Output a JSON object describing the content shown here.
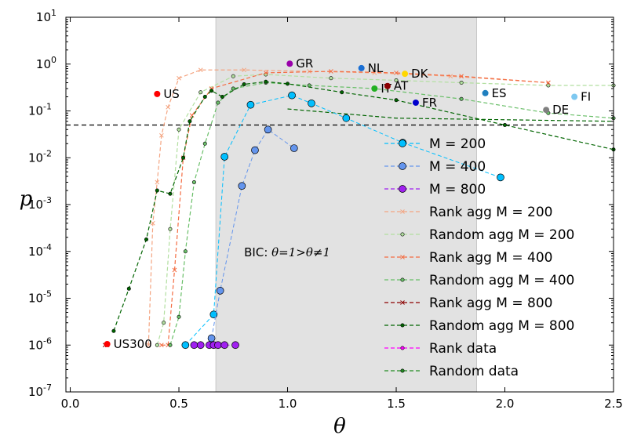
{
  "chart_data": {
    "type": "scatter",
    "title": "",
    "xlabel": "θ",
    "ylabel": "p",
    "xlim": [
      -0.02,
      2.5
    ],
    "ylim": [
      1e-07,
      10
    ],
    "yscale": "log",
    "x_ticks": [
      "0.0",
      "0.5",
      "1.0",
      "1.5",
      "2.0",
      "2.5"
    ],
    "y_ticks": [
      {
        "base": "10",
        "exp": "1"
      },
      {
        "base": "10",
        "exp": "0"
      },
      {
        "base": "10",
        "exp": "-1"
      },
      {
        "base": "10",
        "exp": "-2"
      },
      {
        "base": "10",
        "exp": "-3"
      },
      {
        "base": "10",
        "exp": "-4"
      },
      {
        "base": "10",
        "exp": "-5"
      },
      {
        "base": "10",
        "exp": "-6"
      },
      {
        "base": "10",
        "exp": "-7"
      }
    ],
    "shaded_region": {
      "x0": 0.67,
      "x1": 1.87,
      "color": "#e2e2e2"
    },
    "threshold_line": {
      "y": 0.05,
      "style": "dashed",
      "color": "#000000"
    },
    "annotation": {
      "text_prefix": "BIC: ",
      "math": "θ=1>θ≠1",
      "x": 1.0,
      "y": 0.0001
    },
    "legend_position": "center-right",
    "series": [
      {
        "name": "M = 200",
        "kind": "marker",
        "color": "#00bfff",
        "marker": "circle",
        "x": [
          0.53,
          0.66,
          0.71,
          0.83,
          1.02,
          1.11,
          1.27,
          1.53,
          1.98
        ],
        "y": [
          1e-06,
          4.5e-06,
          0.0105,
          0.135,
          0.215,
          0.145,
          0.07,
          0.021,
          0.0038
        ]
      },
      {
        "name": "M = 400",
        "kind": "marker",
        "color": "#6495ed",
        "marker": "circle",
        "x": [
          0.65,
          0.69,
          0.79,
          0.85,
          0.91,
          1.03
        ],
        "y": [
          1.4e-06,
          1.45e-05,
          0.0025,
          0.0145,
          0.04,
          0.016
        ]
      },
      {
        "name": "M = 800",
        "kind": "marker",
        "color": "#a020f0",
        "marker": "circle",
        "x": [
          0.57,
          0.6,
          0.64,
          0.66,
          0.68,
          0.71,
          0.76
        ],
        "y": [
          1e-06,
          1e-06,
          1e-06,
          1e-06,
          1e-06,
          1e-06,
          1e-06
        ]
      },
      {
        "name": "Rank agg M = 200",
        "kind": "dashed-line",
        "color": "#f4a582",
        "marker": "x",
        "x": [
          0.36,
          0.38,
          0.4,
          0.42,
          0.45,
          0.5,
          0.6,
          0.8,
          1.1,
          1.4,
          1.75,
          2.2
        ],
        "y": [
          1e-06,
          0.0004,
          0.003,
          0.03,
          0.12,
          0.5,
          0.75,
          0.75,
          0.7,
          0.65,
          0.55,
          0.4
        ]
      },
      {
        "name": "Random agg M = 200",
        "kind": "dashed-line",
        "color": "#b2dfa0",
        "marker": "circle-small",
        "x": [
          0.4,
          0.43,
          0.46,
          0.5,
          0.6,
          0.75,
          0.9,
          1.2,
          1.5,
          1.8,
          2.2,
          2.5
        ],
        "y": [
          1e-06,
          3e-06,
          0.0003,
          0.04,
          0.25,
          0.55,
          0.6,
          0.5,
          0.45,
          0.4,
          0.35,
          0.35
        ]
      },
      {
        "name": "Rank agg M = 400",
        "kind": "dashed-line",
        "color": "#f46d43",
        "marker": "x",
        "x": [
          0.42,
          0.45,
          0.48,
          0.52,
          0.56,
          0.65,
          0.9,
          1.2,
          1.5,
          1.8,
          2.2
        ],
        "y": [
          1e-06,
          1e-06,
          4e-05,
          0.01,
          0.08,
          0.3,
          0.65,
          0.7,
          0.65,
          0.55,
          0.4
        ]
      },
      {
        "name": "Random agg M = 400",
        "kind": "dashed-line",
        "color": "#6abf69",
        "marker": "circle-small",
        "x": [
          0.46,
          0.5,
          0.53,
          0.57,
          0.62,
          0.68,
          0.75,
          0.9,
          1.1,
          1.4,
          1.8,
          2.2,
          2.5
        ],
        "y": [
          1e-06,
          4e-06,
          0.0001,
          0.003,
          0.02,
          0.15,
          0.3,
          0.4,
          0.35,
          0.3,
          0.18,
          0.09,
          0.07
        ]
      },
      {
        "name": "Rank agg M = 800",
        "kind": "dashed-line",
        "color": "#8b0000",
        "marker": "x",
        "x": [
          0.16,
          0.17
        ],
        "y": [
          1e-06,
          1e-06
        ]
      },
      {
        "name": "Random agg M = 800",
        "kind": "dashed-line",
        "color": "#006400",
        "marker": "circle-small",
        "x": [
          0.2,
          0.27,
          0.35,
          0.4,
          0.46,
          0.52,
          0.55,
          0.62,
          0.65,
          0.7,
          0.8,
          0.9,
          1.0,
          1.25,
          1.5,
          2.0,
          2.5
        ],
        "y": [
          2e-06,
          1.6e-05,
          0.00018,
          0.002,
          0.0017,
          0.01,
          0.06,
          0.2,
          0.27,
          0.2,
          0.37,
          0.42,
          0.38,
          0.25,
          0.17,
          0.05,
          0.015
        ]
      },
      {
        "name": "Rank data",
        "kind": "marker",
        "color": "#ff00ff",
        "marker": "circle-small",
        "x": [],
        "y": []
      },
      {
        "name": "Random data",
        "kind": "marker",
        "color": "#228b22",
        "marker": "circle-small",
        "x": [],
        "y": []
      }
    ],
    "extra_dashed_lines": [
      {
        "color": "#006400",
        "x": [
          1.0,
          1.5,
          2.5
        ],
        "y": [
          0.11,
          0.07,
          0.06
        ]
      }
    ],
    "countries": [
      {
        "label": "US",
        "x": 0.4,
        "y": 0.23,
        "color": "#ff0000"
      },
      {
        "label": "GR",
        "x": 1.01,
        "y": 1.02,
        "color": "#9900aa"
      },
      {
        "label": "NL",
        "x": 1.34,
        "y": 0.82,
        "color": "#1a6fd4"
      },
      {
        "label": "DK",
        "x": 1.54,
        "y": 0.62,
        "color": "#ffd700"
      },
      {
        "label": "IT",
        "x": 1.4,
        "y": 0.3,
        "color": "#22b022"
      },
      {
        "label": "AT",
        "x": 1.46,
        "y": 0.34,
        "color": "#8b0000"
      },
      {
        "label": "FR",
        "x": 1.59,
        "y": 0.15,
        "color": "#0000cd"
      },
      {
        "label": "ES",
        "x": 1.91,
        "y": 0.24,
        "color": "#1f7fbf"
      },
      {
        "label": "DE",
        "x": 2.19,
        "y": 0.105,
        "color": "#808080"
      },
      {
        "label": "FI",
        "x": 2.32,
        "y": 0.2,
        "color": "#7ec8f0"
      },
      {
        "label": "US300",
        "x": 0.17,
        "y": 1.05e-06,
        "color": "#ff0000"
      }
    ]
  }
}
